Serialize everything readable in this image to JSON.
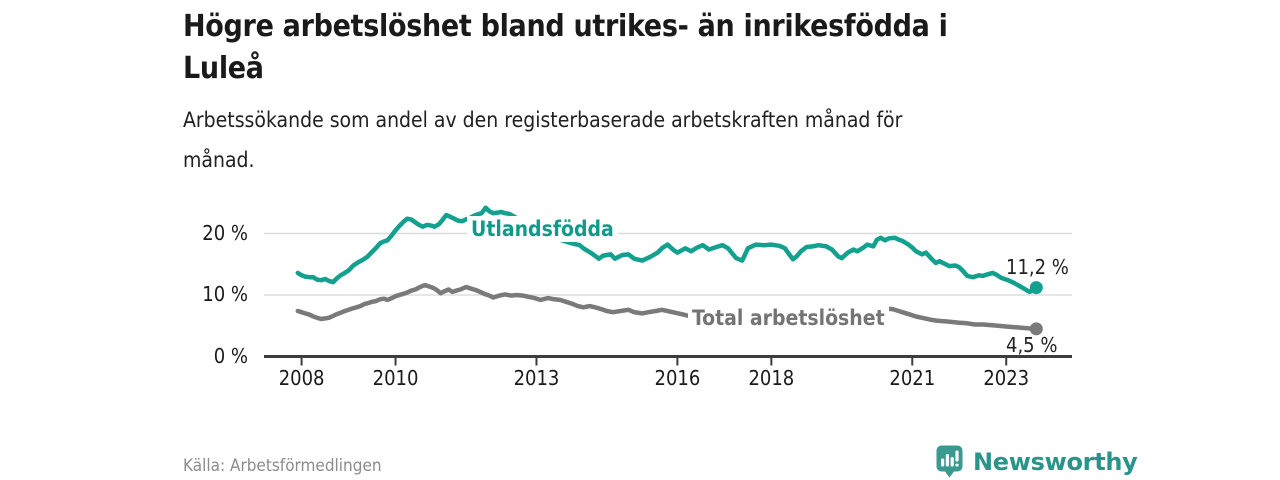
{
  "header": {
    "title_line1": "Högre arbetslöshet bland utrikes- än inrikesfödda i",
    "title_line2": "Luleå",
    "subtitle_line1": "Arbetssökande som andel av den registerbaserade arbetskraften månad för",
    "subtitle_line2": "månad."
  },
  "chart_data": {
    "type": "line",
    "unit": "%",
    "grid": "horizontal",
    "legend_position": "inline-labels",
    "ylim": [
      0,
      26
    ],
    "xlim_years": [
      2007.2,
      2024.4
    ],
    "y_ticks": [
      {
        "value": 0,
        "label": "0 %"
      },
      {
        "value": 10,
        "label": "10 %"
      },
      {
        "value": 20,
        "label": "20 %"
      }
    ],
    "x_ticks": [
      {
        "year": 2008,
        "label": "2008"
      },
      {
        "year": 2010,
        "label": "2010"
      },
      {
        "year": 2013,
        "label": "2013"
      },
      {
        "year": 2016,
        "label": "2016"
      },
      {
        "year": 2018,
        "label": "2018"
      },
      {
        "year": 2021,
        "label": "2021"
      },
      {
        "year": 2023,
        "label": "2023"
      }
    ],
    "series": [
      {
        "name": "Utlandsfödda",
        "color": "#13a08f",
        "end_label": "11,2 %",
        "end_value": 11.2,
        "points": [
          [
            2007.92,
            13.6
          ],
          [
            2008.0,
            13.2
          ],
          [
            2008.08,
            13.0
          ],
          [
            2008.17,
            12.9
          ],
          [
            2008.25,
            12.9
          ],
          [
            2008.33,
            12.5
          ],
          [
            2008.42,
            12.4
          ],
          [
            2008.5,
            12.6
          ],
          [
            2008.58,
            12.3
          ],
          [
            2008.67,
            12.1
          ],
          [
            2008.75,
            12.7
          ],
          [
            2008.83,
            13.2
          ],
          [
            2008.92,
            13.6
          ],
          [
            2009.0,
            14.0
          ],
          [
            2009.1,
            14.8
          ],
          [
            2009.2,
            15.3
          ],
          [
            2009.3,
            15.7
          ],
          [
            2009.4,
            16.2
          ],
          [
            2009.5,
            17.0
          ],
          [
            2009.58,
            17.6
          ],
          [
            2009.67,
            18.4
          ],
          [
            2009.75,
            18.7
          ],
          [
            2009.83,
            18.9
          ],
          [
            2009.92,
            19.7
          ],
          [
            2010.0,
            20.5
          ],
          [
            2010.08,
            21.2
          ],
          [
            2010.17,
            21.9
          ],
          [
            2010.25,
            22.4
          ],
          [
            2010.33,
            22.3
          ],
          [
            2010.42,
            21.8
          ],
          [
            2010.5,
            21.4
          ],
          [
            2010.58,
            21.1
          ],
          [
            2010.67,
            21.4
          ],
          [
            2010.75,
            21.3
          ],
          [
            2010.83,
            21.1
          ],
          [
            2010.92,
            21.5
          ],
          [
            2011.0,
            22.2
          ],
          [
            2011.08,
            23.0
          ],
          [
            2011.17,
            22.7
          ],
          [
            2011.25,
            22.4
          ],
          [
            2011.33,
            22.1
          ],
          [
            2011.42,
            22.0
          ],
          [
            2011.5,
            22.3
          ],
          [
            2011.58,
            22.5
          ],
          [
            2011.67,
            22.9
          ],
          [
            2011.75,
            23.1
          ],
          [
            2011.83,
            23.3
          ],
          [
            2011.92,
            24.2
          ],
          [
            2012.0,
            23.6
          ],
          [
            2012.08,
            23.3
          ],
          [
            2012.17,
            23.4
          ],
          [
            2012.25,
            23.5
          ],
          [
            2012.33,
            23.3
          ],
          [
            2012.42,
            23.2
          ],
          [
            2012.58,
            22.5
          ],
          [
            2012.75,
            21.7
          ],
          [
            2012.92,
            21.0
          ],
          [
            2013.08,
            20.3
          ],
          [
            2013.25,
            19.7
          ],
          [
            2013.42,
            19.2
          ],
          [
            2013.58,
            18.8
          ],
          [
            2013.75,
            18.4
          ],
          [
            2013.92,
            18.1
          ],
          [
            2014.0,
            17.6
          ],
          [
            2014.17,
            16.8
          ],
          [
            2014.33,
            15.9
          ],
          [
            2014.42,
            16.4
          ],
          [
            2014.58,
            16.6
          ],
          [
            2014.67,
            15.9
          ],
          [
            2014.83,
            16.5
          ],
          [
            2014.96,
            16.6
          ],
          [
            2015.08,
            15.9
          ],
          [
            2015.25,
            15.6
          ],
          [
            2015.42,
            16.2
          ],
          [
            2015.58,
            16.9
          ],
          [
            2015.67,
            17.6
          ],
          [
            2015.79,
            18.2
          ],
          [
            2015.92,
            17.3
          ],
          [
            2016.0,
            16.9
          ],
          [
            2016.17,
            17.6
          ],
          [
            2016.29,
            17.1
          ],
          [
            2016.42,
            17.7
          ],
          [
            2016.54,
            18.1
          ],
          [
            2016.67,
            17.4
          ],
          [
            2016.83,
            17.8
          ],
          [
            2016.96,
            18.1
          ],
          [
            2017.08,
            17.6
          ],
          [
            2017.25,
            16.0
          ],
          [
            2017.38,
            15.6
          ],
          [
            2017.5,
            17.6
          ],
          [
            2017.67,
            18.2
          ],
          [
            2017.83,
            18.1
          ],
          [
            2018.0,
            18.2
          ],
          [
            2018.17,
            18.0
          ],
          [
            2018.29,
            17.6
          ],
          [
            2018.38,
            16.6
          ],
          [
            2018.46,
            15.8
          ],
          [
            2018.54,
            16.3
          ],
          [
            2018.63,
            17.1
          ],
          [
            2018.75,
            17.8
          ],
          [
            2018.88,
            17.9
          ],
          [
            2019.0,
            18.1
          ],
          [
            2019.17,
            17.9
          ],
          [
            2019.29,
            17.4
          ],
          [
            2019.42,
            16.3
          ],
          [
            2019.5,
            16.0
          ],
          [
            2019.63,
            16.9
          ],
          [
            2019.75,
            17.4
          ],
          [
            2019.83,
            17.1
          ],
          [
            2019.96,
            17.7
          ],
          [
            2020.04,
            18.2
          ],
          [
            2020.17,
            17.9
          ],
          [
            2020.25,
            19.0
          ],
          [
            2020.33,
            19.3
          ],
          [
            2020.42,
            18.9
          ],
          [
            2020.5,
            19.2
          ],
          [
            2020.63,
            19.3
          ],
          [
            2020.71,
            19.0
          ],
          [
            2020.79,
            18.8
          ],
          [
            2020.92,
            18.2
          ],
          [
            2021.0,
            17.7
          ],
          [
            2021.08,
            17.1
          ],
          [
            2021.21,
            16.6
          ],
          [
            2021.29,
            16.9
          ],
          [
            2021.42,
            15.8
          ],
          [
            2021.5,
            15.2
          ],
          [
            2021.58,
            15.5
          ],
          [
            2021.71,
            15.0
          ],
          [
            2021.79,
            14.7
          ],
          [
            2021.92,
            14.8
          ],
          [
            2022.0,
            14.5
          ],
          [
            2022.08,
            13.9
          ],
          [
            2022.17,
            13.1
          ],
          [
            2022.29,
            12.9
          ],
          [
            2022.42,
            13.2
          ],
          [
            2022.5,
            13.1
          ],
          [
            2022.58,
            13.3
          ],
          [
            2022.71,
            13.6
          ],
          [
            2022.79,
            13.3
          ],
          [
            2022.89,
            12.8
          ],
          [
            2023.04,
            12.4
          ],
          [
            2023.18,
            11.9
          ],
          [
            2023.32,
            11.3
          ],
          [
            2023.43,
            10.8
          ],
          [
            2023.5,
            10.5
          ],
          [
            2023.57,
            10.9
          ],
          [
            2023.64,
            11.2
          ]
        ]
      },
      {
        "name": "Total arbetslöshet",
        "color": "#7a7a7a",
        "end_label": "4,5 %",
        "end_value": 4.5,
        "points": [
          [
            2007.92,
            7.4
          ],
          [
            2008.0,
            7.2
          ],
          [
            2008.08,
            7.0
          ],
          [
            2008.17,
            6.8
          ],
          [
            2008.25,
            6.5
          ],
          [
            2008.33,
            6.3
          ],
          [
            2008.42,
            6.1
          ],
          [
            2008.5,
            6.2
          ],
          [
            2008.58,
            6.3
          ],
          [
            2008.67,
            6.6
          ],
          [
            2008.75,
            6.9
          ],
          [
            2008.83,
            7.1
          ],
          [
            2008.92,
            7.4
          ],
          [
            2009.0,
            7.6
          ],
          [
            2009.08,
            7.8
          ],
          [
            2009.17,
            8.0
          ],
          [
            2009.25,
            8.2
          ],
          [
            2009.33,
            8.5
          ],
          [
            2009.42,
            8.7
          ],
          [
            2009.5,
            8.9
          ],
          [
            2009.58,
            9.0
          ],
          [
            2009.67,
            9.3
          ],
          [
            2009.75,
            9.4
          ],
          [
            2009.83,
            9.2
          ],
          [
            2009.92,
            9.5
          ],
          [
            2010.0,
            9.8
          ],
          [
            2010.08,
            10.0
          ],
          [
            2010.17,
            10.2
          ],
          [
            2010.25,
            10.4
          ],
          [
            2010.33,
            10.7
          ],
          [
            2010.42,
            10.9
          ],
          [
            2010.5,
            11.2
          ],
          [
            2010.58,
            11.5
          ],
          [
            2010.63,
            11.6
          ],
          [
            2010.71,
            11.4
          ],
          [
            2010.79,
            11.2
          ],
          [
            2010.88,
            10.8
          ],
          [
            2010.96,
            10.3
          ],
          [
            2011.04,
            10.6
          ],
          [
            2011.13,
            10.9
          ],
          [
            2011.21,
            10.5
          ],
          [
            2011.29,
            10.7
          ],
          [
            2011.38,
            10.9
          ],
          [
            2011.5,
            11.3
          ],
          [
            2011.58,
            11.1
          ],
          [
            2011.71,
            10.8
          ],
          [
            2011.83,
            10.4
          ],
          [
            2011.92,
            10.1
          ],
          [
            2012.0,
            9.9
          ],
          [
            2012.08,
            9.6
          ],
          [
            2012.21,
            9.9
          ],
          [
            2012.33,
            10.1
          ],
          [
            2012.46,
            9.9
          ],
          [
            2012.58,
            10.0
          ],
          [
            2012.71,
            9.9
          ],
          [
            2012.83,
            9.7
          ],
          [
            2012.96,
            9.5
          ],
          [
            2013.08,
            9.2
          ],
          [
            2013.25,
            9.5
          ],
          [
            2013.38,
            9.3
          ],
          [
            2013.5,
            9.2
          ],
          [
            2013.63,
            8.9
          ],
          [
            2013.75,
            8.6
          ],
          [
            2013.88,
            8.2
          ],
          [
            2014.0,
            8.0
          ],
          [
            2014.13,
            8.2
          ],
          [
            2014.25,
            8.0
          ],
          [
            2014.38,
            7.7
          ],
          [
            2014.5,
            7.4
          ],
          [
            2014.63,
            7.2
          ],
          [
            2014.79,
            7.4
          ],
          [
            2014.96,
            7.6
          ],
          [
            2015.08,
            7.2
          ],
          [
            2015.25,
            7.0
          ],
          [
            2015.38,
            7.2
          ],
          [
            2015.54,
            7.4
          ],
          [
            2015.67,
            7.6
          ],
          [
            2015.79,
            7.4
          ],
          [
            2015.96,
            7.1
          ],
          [
            2016.08,
            6.9
          ],
          [
            2016.25,
            6.6
          ],
          [
            2016.38,
            6.3
          ],
          [
            2016.54,
            6.5
          ],
          [
            2016.67,
            6.6
          ],
          [
            2016.83,
            6.8
          ],
          [
            2016.96,
            6.9
          ],
          [
            2017.13,
            6.7
          ],
          [
            2017.25,
            6.5
          ],
          [
            2017.42,
            6.2
          ],
          [
            2017.58,
            6.1
          ],
          [
            2017.75,
            6.0
          ],
          [
            2017.96,
            6.0
          ],
          [
            2018.17,
            5.9
          ],
          [
            2018.38,
            5.8
          ],
          [
            2018.58,
            5.9
          ],
          [
            2018.79,
            6.0
          ],
          [
            2019.0,
            6.1
          ],
          [
            2019.21,
            6.2
          ],
          [
            2019.42,
            6.3
          ],
          [
            2019.63,
            6.4
          ],
          [
            2019.83,
            6.6
          ],
          [
            2020.0,
            7.0
          ],
          [
            2020.13,
            7.6
          ],
          [
            2020.25,
            7.9
          ],
          [
            2020.42,
            7.8
          ],
          [
            2020.58,
            7.7
          ],
          [
            2020.71,
            7.4
          ],
          [
            2020.83,
            7.1
          ],
          [
            2020.96,
            6.8
          ],
          [
            2021.08,
            6.5
          ],
          [
            2021.21,
            6.3
          ],
          [
            2021.38,
            6.0
          ],
          [
            2021.54,
            5.8
          ],
          [
            2021.71,
            5.7
          ],
          [
            2021.88,
            5.6
          ],
          [
            2022.0,
            5.5
          ],
          [
            2022.17,
            5.4
          ],
          [
            2022.33,
            5.2
          ],
          [
            2022.5,
            5.2
          ],
          [
            2022.67,
            5.1
          ],
          [
            2022.83,
            5.0
          ],
          [
            2022.96,
            4.9
          ],
          [
            2023.13,
            4.8
          ],
          [
            2023.29,
            4.7
          ],
          [
            2023.45,
            4.6
          ],
          [
            2023.55,
            4.5
          ],
          [
            2023.64,
            4.5
          ]
        ]
      }
    ]
  },
  "footer": {
    "source": "Källa: Arbetsförmedlingen",
    "brand_name": "Newsworthy",
    "logo_icon": "bar-chart-exclamation-pin-icon"
  },
  "colors": {
    "series_foreign": "#13a08f",
    "series_total": "#7a7a7a",
    "grid": "#dddddd",
    "axis": "#3d3d3d",
    "text": "#1a1a1a",
    "source_text": "#8c8c8c",
    "brand_teal": "#3b9a90",
    "brand_text": "#2b948a"
  }
}
